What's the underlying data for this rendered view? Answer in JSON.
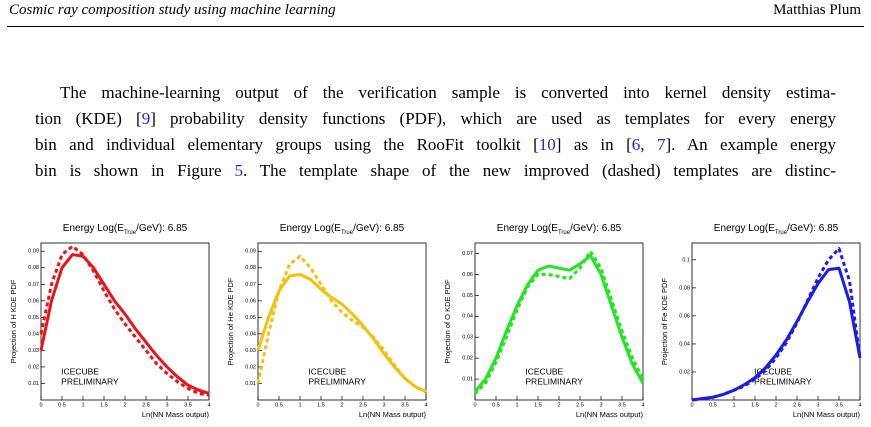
{
  "header": {
    "title": "Cosmic ray composition study using machine learning",
    "author": "Matthias Plum"
  },
  "paragraph": [
    [
      "The machine-learning output of the verification sample is converted into kernel density estima-"
    ],
    [
      "tion (KDE) [",
      {
        "text": "9"
      },
      "] probability density functions (PDF), which are used as templates for every energy"
    ],
    [
      "bin and individual elementary groups using the RooFit toolkit [",
      {
        "text": "10"
      },
      "] as in [",
      {
        "text": "6"
      },
      ", ",
      {
        "text": "7"
      },
      "]. An example energy"
    ],
    [
      "bin is shown in Figure ",
      {
        "text": "5"
      },
      ". The template shape of the new improved (dashed) templates are distinc-"
    ]
  ],
  "chart_data": [
    {
      "type": "line",
      "title": [
        "Energy Log(E",
        "True",
        "/GeV): 6.85"
      ],
      "y_label": "Projection of H KDE PDF",
      "x_label": "Ln(NN Mass output)",
      "annotation": [
        "ICECUBE",
        "PRELIMINARY"
      ],
      "x": [
        0,
        0.25,
        0.5,
        0.75,
        1,
        1.25,
        1.5,
        1.75,
        2,
        2.25,
        2.5,
        2.75,
        3,
        3.25,
        3.5,
        3.75,
        4
      ],
      "xlim": [
        0,
        4
      ],
      "xticks": [
        0,
        0.5,
        1,
        1.5,
        2,
        2.5,
        3,
        3.5,
        4
      ],
      "ylim": [
        0,
        0.095
      ],
      "yticks": [
        0.01,
        0.02,
        0.03,
        0.04,
        0.05,
        0.06,
        0.07,
        0.08,
        0.09
      ],
      "series": [
        {
          "color": "#e8141a",
          "style": "solid",
          "values": [
            0.03,
            0.06,
            0.08,
            0.088,
            0.087,
            0.08,
            0.07,
            0.06,
            0.052,
            0.043,
            0.035,
            0.027,
            0.02,
            0.014,
            0.009,
            0.006,
            0.004
          ]
        },
        {
          "color": "#e8141a",
          "style": "dashed",
          "values": [
            0.04,
            0.07,
            0.088,
            0.093,
            0.088,
            0.078,
            0.066,
            0.055,
            0.046,
            0.038,
            0.03,
            0.022,
            0.016,
            0.011,
            0.007,
            0.004,
            0.003
          ]
        }
      ]
    },
    {
      "type": "line",
      "title": [
        "Energy Log(E",
        "True",
        "/GeV): 6.85"
      ],
      "y_label": "Projection of He KDE PDF",
      "x_label": "Ln(NN Mass output)",
      "annotation": [
        "ICECUBE",
        "PRELIMINARY"
      ],
      "x": [
        0,
        0.25,
        0.5,
        0.75,
        1,
        1.25,
        1.5,
        1.75,
        2,
        2.25,
        2.5,
        2.75,
        3,
        3.25,
        3.5,
        3.75,
        4
      ],
      "xlim": [
        0,
        4
      ],
      "xticks": [
        0,
        0.5,
        1,
        1.5,
        2,
        2.5,
        3,
        3.5,
        4
      ],
      "ylim": [
        0,
        0.095
      ],
      "yticks": [
        0.01,
        0.02,
        0.03,
        0.04,
        0.05,
        0.06,
        0.07,
        0.08,
        0.09
      ],
      "series": [
        {
          "color": "#f2c10c",
          "style": "solid",
          "values": [
            0.03,
            0.05,
            0.066,
            0.075,
            0.076,
            0.073,
            0.067,
            0.062,
            0.058,
            0.052,
            0.045,
            0.037,
            0.028,
            0.02,
            0.013,
            0.008,
            0.005
          ]
        },
        {
          "color": "#f2c10c",
          "style": "dashed",
          "values": [
            0.01,
            0.04,
            0.066,
            0.082,
            0.087,
            0.08,
            0.07,
            0.06,
            0.053,
            0.048,
            0.044,
            0.038,
            0.03,
            0.021,
            0.013,
            0.008,
            0.005
          ]
        }
      ]
    },
    {
      "type": "line",
      "title": [
        "Energy Log(E",
        "True",
        "/GeV): 6.85"
      ],
      "y_label": "Projection of O KDE PDF",
      "x_label": "Ln(NN Mass output)",
      "annotation": [
        "ICECUBE",
        "PRELIMINARY"
      ],
      "x": [
        0,
        0.25,
        0.5,
        0.75,
        1,
        1.25,
        1.5,
        1.75,
        2,
        2.25,
        2.5,
        2.75,
        3,
        3.25,
        3.5,
        3.75,
        4
      ],
      "xlim": [
        0,
        4
      ],
      "xticks": [
        0,
        0.5,
        1,
        1.5,
        2,
        2.5,
        3,
        3.5,
        4
      ],
      "ylim": [
        0,
        0.075
      ],
      "yticks": [
        0.01,
        0.02,
        0.03,
        0.04,
        0.05,
        0.06,
        0.07
      ],
      "series": [
        {
          "color": "#22e622",
          "style": "solid",
          "values": [
            0.004,
            0.01,
            0.02,
            0.033,
            0.045,
            0.055,
            0.062,
            0.064,
            0.063,
            0.062,
            0.065,
            0.069,
            0.06,
            0.045,
            0.03,
            0.017,
            0.008
          ]
        },
        {
          "color": "#22e622",
          "style": "dashed",
          "values": [
            0.003,
            0.008,
            0.018,
            0.03,
            0.043,
            0.054,
            0.06,
            0.06,
            0.059,
            0.058,
            0.063,
            0.071,
            0.063,
            0.048,
            0.033,
            0.02,
            0.01
          ]
        }
      ]
    },
    {
      "type": "line",
      "title": [
        "Energy Log(E",
        "True",
        "/GeV): 6.85"
      ],
      "y_label": "Projection of Fe KDE PDF",
      "x_label": "Ln(NN Mass output)",
      "annotation": [
        "ICECUBE",
        "PRELIMINARY"
      ],
      "x": [
        0,
        0.25,
        0.5,
        0.75,
        1,
        1.25,
        1.5,
        1.75,
        2,
        2.25,
        2.5,
        2.75,
        3,
        3.25,
        3.5,
        3.75,
        4
      ],
      "xlim": [
        0,
        4
      ],
      "xticks": [
        0,
        0.5,
        1,
        1.5,
        2,
        2.5,
        3,
        3.5,
        4
      ],
      "ylim": [
        0,
        0.112
      ],
      "yticks": [
        0.02,
        0.04,
        0.06,
        0.08,
        0.1
      ],
      "series": [
        {
          "color": "#1c1ce8",
          "style": "solid",
          "values": [
            0.0,
            0.001,
            0.002,
            0.004,
            0.007,
            0.011,
            0.016,
            0.023,
            0.032,
            0.043,
            0.056,
            0.07,
            0.083,
            0.093,
            0.094,
            0.07,
            0.03
          ]
        },
        {
          "color": "#1c1ce8",
          "style": "dashed",
          "values": [
            0.0,
            0.001,
            0.002,
            0.004,
            0.007,
            0.01,
            0.015,
            0.021,
            0.03,
            0.041,
            0.055,
            0.071,
            0.087,
            0.1,
            0.108,
            0.085,
            0.03
          ]
        }
      ]
    }
  ]
}
